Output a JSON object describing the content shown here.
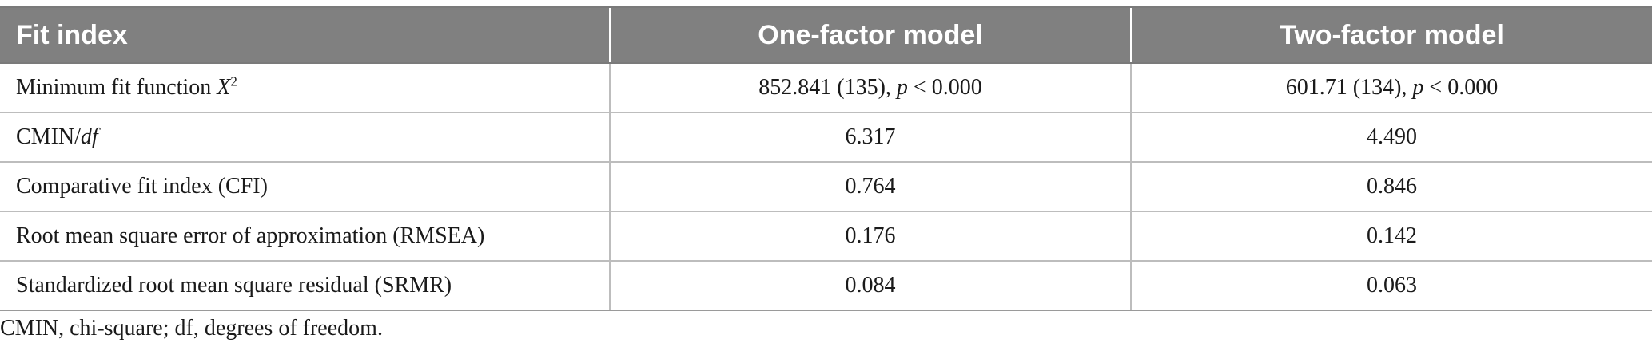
{
  "table": {
    "headers": [
      "Fit index",
      "One-factor model",
      "Two-factor model"
    ],
    "rows": [
      {
        "label_text": "Minimum fit function ",
        "label_italic": "X",
        "label_sup": "2",
        "one": {
          "pre": "852.841 (135), ",
          "italic": "p",
          "post": " < 0.000"
        },
        "two": {
          "pre": "601.71 (134), ",
          "italic": "p",
          "post": " < 0.000"
        }
      },
      {
        "label_text": "CMIN/",
        "label_italic": "df",
        "one": "6.317",
        "two": "4.490"
      },
      {
        "label": "Comparative fit index (CFI)",
        "one": "0.764",
        "two": "0.846"
      },
      {
        "label": "Root mean square error of approximation (RMSEA)",
        "one": "0.176",
        "two": "0.142"
      },
      {
        "label": "Standardized root mean square residual (SRMR)",
        "one": "0.084",
        "two": "0.063"
      }
    ]
  },
  "footnote": "CMIN, chi-square; df, degrees of freedom."
}
